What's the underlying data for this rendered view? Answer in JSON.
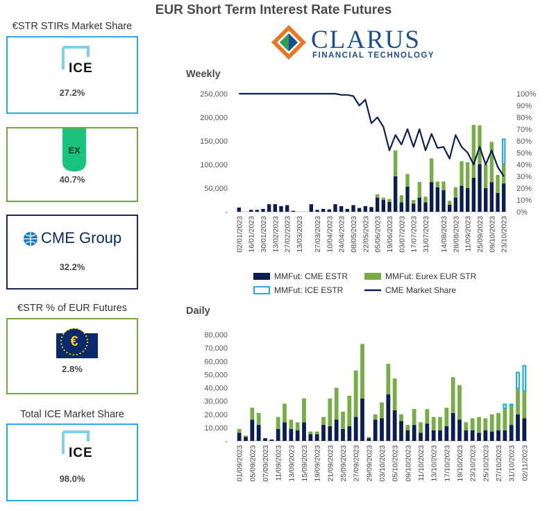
{
  "title": "EUR Short Term Interest Rate Futures",
  "left_panel": {
    "stirs_label": "€STR STIRs Market Share",
    "ice_logo_text": "ICE",
    "ice_share": "27.2%",
    "eurex_logo_text": "EX",
    "eurex_share": "40.7%",
    "cme_logo_text": "CME Group",
    "cme_share": "32.2%",
    "estr_pct_label": "€STR % of EUR Futures",
    "ecb_logo_text": "€",
    "estr_pct": "2.8%",
    "total_ice_label": "Total ICE Market Share",
    "ice_logo_text2": "ICE",
    "total_ice_share": "98.0%"
  },
  "brand": {
    "name": "CLARUS",
    "tagline": "FINANCIAL TECHNOLOGY"
  },
  "colors": {
    "cme": "#0c1e4f",
    "eurex": "#77ac46",
    "ice": "#29abe2",
    "line": "#0c1e4f"
  },
  "chart_data": [
    {
      "type": "bar",
      "title": "Weekly",
      "stacked": true,
      "ylim": [
        0,
        250000
      ],
      "y_ticks": [
        "250,000",
        "200,000",
        "150,000",
        "100,000",
        "50,000",
        "-"
      ],
      "y2lim": [
        0,
        100
      ],
      "y2_ticks": [
        "100%",
        "90%",
        "80%",
        "70%",
        "60%",
        "50%",
        "40%",
        "30%",
        "20%",
        "10%",
        "0%"
      ],
      "x_tick_labels": [
        "02/01/2023",
        "16/01/2023",
        "30/01/2023",
        "13/02/2023",
        "27/02/2023",
        "13/03/2023",
        "27/03/2023",
        "10/04/2023",
        "24/04/2023",
        "08/05/2023",
        "22/05/2023",
        "05/06/2023",
        "19/06/2023",
        "03/07/2023",
        "17/07/2023",
        "31/07/2023",
        "14/08/2023",
        "28/08/2023",
        "11/09/2023",
        "25/09/2023",
        "09/10/2023",
        "23/10/2023"
      ],
      "series": [
        {
          "name": "MMFut: CME ESTR",
          "kind": "bar",
          "values": [
            9000,
            0,
            4000,
            4000,
            6000,
            16000,
            16000,
            12000,
            14000,
            2000,
            0,
            0,
            16000,
            4000,
            6000,
            5000,
            16000,
            12000,
            6000,
            14000,
            8000,
            12000,
            10000,
            30000,
            25000,
            21000,
            75000,
            20000,
            53000,
            17000,
            30000,
            20000,
            63000,
            52000,
            46000,
            15000,
            30000,
            55000,
            50000,
            72000,
            101000,
            50000,
            63000,
            40000,
            60000
          ]
        },
        {
          "name": "MMFut: Eurex EUR STR",
          "kind": "bar",
          "values": [
            0,
            0,
            0,
            0,
            0,
            0,
            0,
            0,
            0,
            0,
            0,
            0,
            0,
            0,
            0,
            0,
            0,
            0,
            0,
            0,
            0,
            0,
            0,
            7000,
            5000,
            6000,
            55000,
            15000,
            27000,
            8000,
            33000,
            12000,
            50000,
            12000,
            18000,
            8000,
            22000,
            52000,
            55000,
            112000,
            82000,
            50000,
            85000,
            38000,
            40000
          ]
        },
        {
          "name": "MMFut: ICE ESTR",
          "kind": "bar",
          "values": [
            0,
            0,
            0,
            0,
            0,
            0,
            0,
            0,
            0,
            0,
            0,
            0,
            0,
            0,
            0,
            0,
            0,
            0,
            0,
            0,
            0,
            0,
            0,
            0,
            0,
            0,
            0,
            0,
            0,
            0,
            0,
            0,
            0,
            0,
            0,
            0,
            0,
            0,
            0,
            0,
            0,
            0,
            0,
            0,
            55000
          ]
        },
        {
          "name": "CME Market Share",
          "kind": "line",
          "axis": "right",
          "values": [
            100,
            100,
            100,
            100,
            100,
            100,
            100,
            100,
            100,
            100,
            100,
            100,
            100,
            100,
            100,
            100,
            100,
            99,
            99,
            98,
            90,
            95,
            75,
            80,
            72,
            52,
            65,
            57,
            70,
            55,
            70,
            52,
            66,
            54,
            55,
            45,
            65,
            55,
            50,
            40,
            55,
            40,
            52,
            38,
            30
          ]
        }
      ]
    },
    {
      "type": "bar",
      "title": "Daily",
      "stacked": true,
      "ylim": [
        0,
        80000
      ],
      "y_ticks": [
        "80,000",
        "70,000",
        "60,000",
        "50,000",
        "40,000",
        "30,000",
        "20,000",
        "10,000",
        "-"
      ],
      "x_tick_labels": [
        "01/09/2023",
        "05/09/2023",
        "07/09/2023",
        "11/09/2023",
        "13/09/2023",
        "15/09/2023",
        "19/09/2023",
        "21/09/2023",
        "25/09/2023",
        "27/09/2023",
        "29/09/2023",
        "03/10/2023",
        "05/10/2023",
        "09/10/2023",
        "11/10/2023",
        "13/10/2023",
        "17/10/2023",
        "19/10/2023",
        "23/10/2023",
        "25/10/2023",
        "27/10/2023",
        "31/10/2023",
        "02/11/2023"
      ],
      "series": [
        {
          "name": "MMFut: CME ESTR",
          "kind": "bar",
          "values": [
            6000,
            3000,
            16000,
            12000,
            2000,
            1000,
            9000,
            14000,
            9000,
            8000,
            14000,
            5000,
            5000,
            12000,
            11000,
            16000,
            9000,
            11000,
            18000,
            32000,
            2000,
            16000,
            17000,
            35000,
            23000,
            15000,
            8000,
            12000,
            6000,
            13000,
            8000,
            8000,
            11000,
            21000,
            16000,
            8000,
            8000,
            6000,
            8000,
            7000,
            8000,
            8000,
            12000,
            20000,
            17000
          ]
        },
        {
          "name": "MMFut: Eurex EUR STR",
          "kind": "bar",
          "values": [
            3000,
            1000,
            9000,
            9000,
            0,
            0,
            9000,
            14000,
            7000,
            6000,
            18000,
            2000,
            2000,
            6000,
            21000,
            24000,
            13000,
            23000,
            35000,
            41000,
            1000,
            4000,
            12000,
            23000,
            24000,
            5000,
            4000,
            12000,
            8000,
            11000,
            10000,
            10000,
            14000,
            27000,
            26000,
            6000,
            9000,
            12000,
            9000,
            13000,
            13000,
            16000,
            14000,
            19000,
            20000
          ]
        },
        {
          "name": "MMFut: ICE ESTR",
          "kind": "bar",
          "values": [
            0,
            0,
            0,
            0,
            0,
            0,
            0,
            0,
            0,
            0,
            0,
            0,
            0,
            0,
            0,
            0,
            0,
            0,
            0,
            0,
            0,
            0,
            0,
            0,
            0,
            0,
            0,
            0,
            0,
            0,
            0,
            0,
            0,
            0,
            0,
            0,
            0,
            0,
            0,
            0,
            0,
            4000,
            2000,
            13000,
            20000
          ]
        }
      ]
    }
  ]
}
